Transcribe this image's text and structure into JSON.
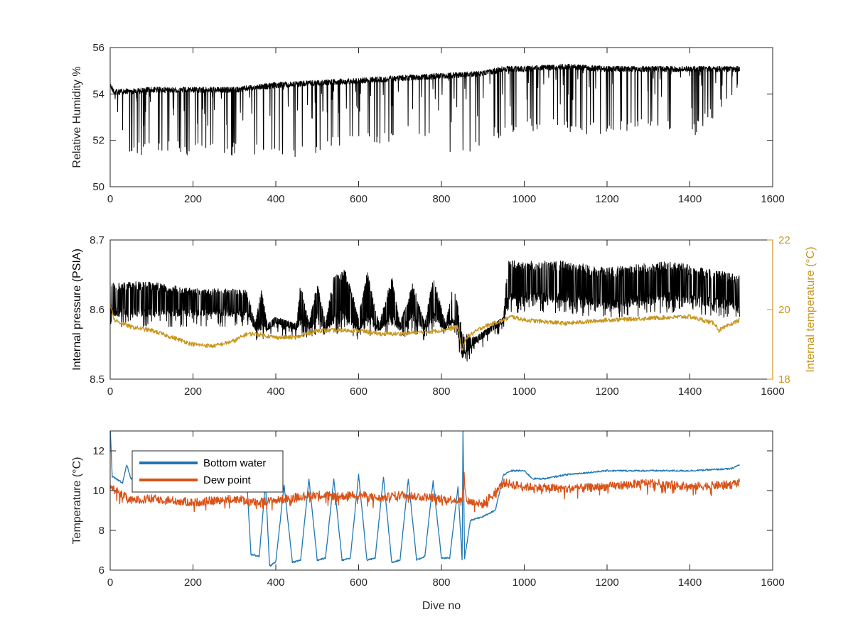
{
  "chart_data": [
    {
      "type": "line",
      "id": "humidity",
      "xlim": [
        0,
        1600
      ],
      "xticks": [
        0,
        200,
        400,
        600,
        800,
        1000,
        1200,
        1400,
        1600
      ],
      "ylim": [
        50,
        56
      ],
      "yticks": [
        50,
        52,
        54,
        56
      ],
      "ylabel": "Relative Humidity %",
      "xlabel": "",
      "grid": false,
      "series": [
        {
          "color": "#000000",
          "style": "dense-with-downward-spikes",
          "upper": [
            [
              0,
              54.5
            ],
            [
              10,
              54.2
            ],
            [
              100,
              54.3
            ],
            [
              200,
              54.3
            ],
            [
              300,
              54.3
            ],
            [
              400,
              54.5
            ],
            [
              500,
              54.6
            ],
            [
              600,
              54.7
            ],
            [
              700,
              54.8
            ],
            [
              800,
              54.9
            ],
            [
              900,
              55.0
            ],
            [
              950,
              55.2
            ],
            [
              1000,
              55.2
            ],
            [
              1100,
              55.3
            ],
            [
              1200,
              55.2
            ],
            [
              1300,
              55.2
            ],
            [
              1400,
              55.2
            ],
            [
              1520,
              55.2
            ]
          ],
          "lower_envelope": [
            [
              0,
              53.8
            ],
            [
              50,
              51.3
            ],
            [
              150,
              51.4
            ],
            [
              250,
              51.3
            ],
            [
              350,
              51.4
            ],
            [
              390,
              51.1
            ],
            [
              450,
              51.3
            ],
            [
              550,
              51.6
            ],
            [
              650,
              51.8
            ],
            [
              750,
              52.2
            ],
            [
              850,
              51.0
            ],
            [
              900,
              51.9
            ],
            [
              1000,
              52.4
            ],
            [
              1100,
              52.4
            ],
            [
              1200,
              52.1
            ],
            [
              1300,
              52.6
            ],
            [
              1400,
              52.0
            ],
            [
              1500,
              53.6
            ],
            [
              1520,
              53.8
            ]
          ]
        }
      ]
    },
    {
      "type": "line",
      "id": "pressure",
      "xlim": [
        0,
        1600
      ],
      "xticks": [
        0,
        200,
        400,
        600,
        800,
        1000,
        1200,
        1400,
        1600
      ],
      "ylim": [
        8.5,
        8.7
      ],
      "yticks": [
        8.5,
        8.6,
        8.7
      ],
      "ylabel": "Internal pressure (PSIA)",
      "ylim_right": [
        18,
        22
      ],
      "yticks_right": [
        18,
        20,
        22
      ],
      "ylabel_right": "Internal temperature (°C)",
      "xlabel": "",
      "grid": false,
      "series": [
        {
          "axis": "left",
          "color": "#000000",
          "style": "dense-band",
          "band": [
            [
              0,
              8.59,
              8.64
            ],
            [
              100,
              8.59,
              8.64
            ],
            [
              200,
              8.59,
              8.63
            ],
            [
              330,
              8.59,
              8.63
            ],
            [
              350,
              8.57,
              8.58
            ],
            [
              365,
              8.57,
              8.63
            ],
            [
              380,
              8.57,
              8.58
            ],
            [
              400,
              8.58,
              8.59
            ],
            [
              450,
              8.57,
              8.58
            ],
            [
              460,
              8.58,
              8.64
            ],
            [
              480,
              8.57,
              8.58
            ],
            [
              500,
              8.58,
              8.64
            ],
            [
              520,
              8.57,
              8.58
            ],
            [
              540,
              8.58,
              8.65
            ],
            [
              570,
              8.58,
              8.66
            ],
            [
              600,
              8.57,
              8.59
            ],
            [
              620,
              8.58,
              8.66
            ],
            [
              650,
              8.57,
              8.58
            ],
            [
              680,
              8.58,
              8.65
            ],
            [
              700,
              8.57,
              8.58
            ],
            [
              730,
              8.58,
              8.64
            ],
            [
              760,
              8.57,
              8.58
            ],
            [
              780,
              8.58,
              8.65
            ],
            [
              810,
              8.57,
              8.58
            ],
            [
              830,
              8.58,
              8.64
            ],
            [
              850,
              8.53,
              8.57
            ],
            [
              880,
              8.55,
              8.56
            ],
            [
              950,
              8.58,
              8.59
            ],
            [
              960,
              8.61,
              8.67
            ],
            [
              1100,
              8.61,
              8.67
            ],
            [
              1200,
              8.6,
              8.66
            ],
            [
              1350,
              8.61,
              8.67
            ],
            [
              1520,
              8.6,
              8.65
            ]
          ]
        },
        {
          "axis": "right",
          "color": "#c8961e",
          "points": [
            [
              0,
              20.2
            ],
            [
              10,
              19.7
            ],
            [
              50,
              19.5
            ],
            [
              100,
              19.4
            ],
            [
              200,
              19.0
            ],
            [
              250,
              18.95
            ],
            [
              300,
              19.1
            ],
            [
              330,
              19.3
            ],
            [
              350,
              19.3
            ],
            [
              400,
              19.2
            ],
            [
              450,
              19.2
            ],
            [
              500,
              19.4
            ],
            [
              550,
              19.4
            ],
            [
              600,
              19.4
            ],
            [
              650,
              19.3
            ],
            [
              700,
              19.3
            ],
            [
              800,
              19.4
            ],
            [
              840,
              19.5
            ],
            [
              850,
              18.8
            ],
            [
              860,
              19.2
            ],
            [
              900,
              19.5
            ],
            [
              950,
              19.7
            ],
            [
              970,
              19.8
            ],
            [
              1000,
              19.7
            ],
            [
              1100,
              19.6
            ],
            [
              1200,
              19.7
            ],
            [
              1300,
              19.75
            ],
            [
              1400,
              19.8
            ],
            [
              1460,
              19.6
            ],
            [
              1470,
              19.4
            ],
            [
              1520,
              19.7
            ]
          ]
        }
      ]
    },
    {
      "type": "line",
      "id": "temperature",
      "xlim": [
        0,
        1600
      ],
      "xticks": [
        0,
        200,
        400,
        600,
        800,
        1000,
        1200,
        1400,
        1600
      ],
      "ylim": [
        6,
        13
      ],
      "yticks": [
        6,
        8,
        10,
        12
      ],
      "ylabel": "Temperature (°C)",
      "xlabel": "Dive no",
      "grid": false,
      "legend_position": "top-left",
      "series": [
        {
          "name": "Bottom water",
          "color": "#1f77b4",
          "points": [
            [
              0,
              13.2
            ],
            [
              5,
              10.7
            ],
            [
              30,
              10.4
            ],
            [
              40,
              11.3
            ],
            [
              50,
              10.6
            ],
            [
              100,
              10.6
            ],
            [
              200,
              10.8
            ],
            [
              300,
              10.7
            ],
            [
              330,
              10.5
            ],
            [
              340,
              6.8
            ],
            [
              360,
              6.7
            ],
            [
              375,
              10.4
            ],
            [
              385,
              6.2
            ],
            [
              400,
              6.4
            ],
            [
              420,
              10.3
            ],
            [
              440,
              6.4
            ],
            [
              460,
              6.5
            ],
            [
              480,
              10.6
            ],
            [
              500,
              6.5
            ],
            [
              520,
              6.6
            ],
            [
              540,
              10.6
            ],
            [
              560,
              6.5
            ],
            [
              580,
              6.6
            ],
            [
              600,
              10.8
            ],
            [
              620,
              6.5
            ],
            [
              640,
              6.6
            ],
            [
              660,
              10.7
            ],
            [
              680,
              6.4
            ],
            [
              700,
              6.5
            ],
            [
              720,
              10.6
            ],
            [
              740,
              6.5
            ],
            [
              760,
              6.7
            ],
            [
              780,
              10.5
            ],
            [
              800,
              6.6
            ],
            [
              820,
              6.6
            ],
            [
              840,
              10.2
            ],
            [
              850,
              6.5
            ],
            [
              852,
              13.0
            ],
            [
              856,
              6.6
            ],
            [
              870,
              8.5
            ],
            [
              900,
              8.7
            ],
            [
              930,
              9.0
            ],
            [
              950,
              10.8
            ],
            [
              970,
              11.0
            ],
            [
              1000,
              11.0
            ],
            [
              1020,
              10.6
            ],
            [
              1050,
              10.6
            ],
            [
              1100,
              10.8
            ],
            [
              1200,
              11.0
            ],
            [
              1300,
              11.0
            ],
            [
              1400,
              11.0
            ],
            [
              1500,
              11.1
            ],
            [
              1520,
              11.3
            ]
          ]
        },
        {
          "name": "Dew point",
          "color": "#d95319",
          "points": [
            [
              0,
              10.2
            ],
            [
              50,
              9.5
            ],
            [
              100,
              9.6
            ],
            [
              200,
              9.4
            ],
            [
              300,
              9.6
            ],
            [
              350,
              9.4
            ],
            [
              400,
              9.5
            ],
            [
              450,
              9.7
            ],
            [
              500,
              9.8
            ],
            [
              550,
              9.7
            ],
            [
              600,
              9.8
            ],
            [
              650,
              9.6
            ],
            [
              700,
              9.8
            ],
            [
              750,
              9.7
            ],
            [
              800,
              9.6
            ],
            [
              850,
              9.5
            ],
            [
              855,
              10.7
            ],
            [
              860,
              9.5
            ],
            [
              900,
              9.3
            ],
            [
              950,
              10.4
            ],
            [
              1000,
              10.2
            ],
            [
              1100,
              10.1
            ],
            [
              1200,
              10.2
            ],
            [
              1300,
              10.4
            ],
            [
              1400,
              10.2
            ],
            [
              1500,
              10.3
            ],
            [
              1520,
              10.4
            ]
          ]
        }
      ]
    }
  ]
}
